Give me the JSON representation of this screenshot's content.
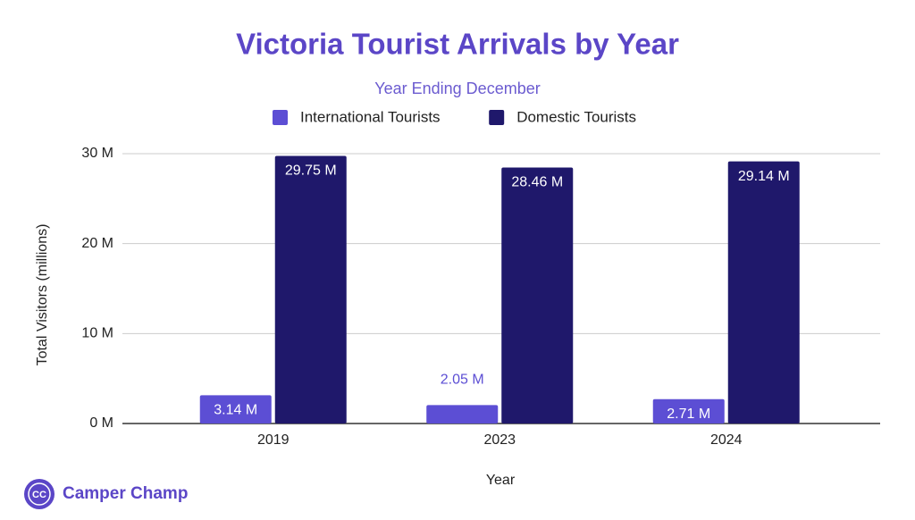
{
  "chart_data": {
    "type": "bar",
    "title": "Victoria Tourist Arrivals by Year",
    "subtitle": "Year Ending December",
    "x_label": "Year",
    "y_label": "Total Visitors (millions)",
    "categories": [
      "2019",
      "2023",
      "2024"
    ],
    "series": [
      {
        "name": "International Tourists",
        "color": "#5c4ed4",
        "values": [
          3.14,
          2.05,
          2.71
        ],
        "value_labels": [
          "3.14 M",
          "2.05 M",
          "2.71 M"
        ]
      },
      {
        "name": "Domestic Tourists",
        "color": "#1f186b",
        "values": [
          29.75,
          28.46,
          29.14
        ],
        "value_labels": [
          "29.75 M",
          "28.46 M",
          "29.14 M"
        ]
      }
    ],
    "ylim": [
      0,
      30
    ],
    "yticks": [
      {
        "value": 0,
        "label": "0 M"
      },
      {
        "value": 10,
        "label": "10 M"
      },
      {
        "value": 20,
        "label": "20 M"
      },
      {
        "value": 30,
        "label": "30 M"
      }
    ],
    "grid": true,
    "legend": "top"
  },
  "brand": {
    "initials": "CC",
    "name": "Camper Champ"
  }
}
